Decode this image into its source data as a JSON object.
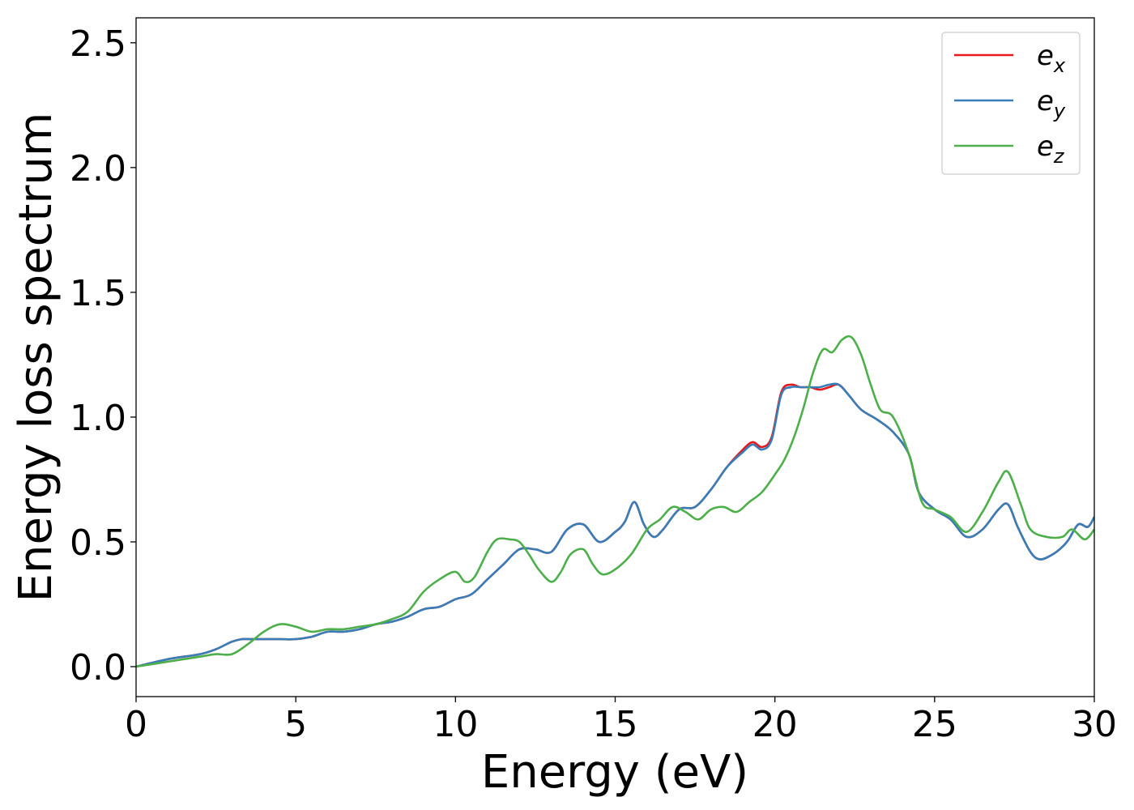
{
  "chart_data": {
    "type": "line",
    "xlabel": "Energy (eV)",
    "ylabel": "Energy loss spectrum",
    "xlim": [
      0,
      30
    ],
    "ylim": [
      -0.12,
      2.6
    ],
    "xticks": [
      0,
      5,
      10,
      15,
      20,
      25,
      30
    ],
    "xtick_labels": [
      "0",
      "5",
      "10",
      "15",
      "20",
      "25",
      "30"
    ],
    "yticks": [
      0.0,
      0.5,
      1.0,
      1.5,
      2.0,
      2.5
    ],
    "ytick_labels": [
      "0.0",
      "0.5",
      "1.0",
      "1.5",
      "2.0",
      "2.5"
    ],
    "grid": false,
    "legend_position": "top-right",
    "series": [
      {
        "name": "e_x",
        "label_main": "e",
        "label_sub": "x",
        "color": "#e41a1c",
        "x": [
          0,
          1,
          2,
          2.5,
          3,
          3.3,
          3.6,
          4,
          4.5,
          5,
          5.5,
          6,
          6.5,
          7,
          7.5,
          8,
          8.5,
          9,
          9.5,
          10,
          10.5,
          11,
          11.5,
          12,
          12.5,
          13,
          13.5,
          14,
          14.5,
          15,
          15.3,
          15.6,
          15.9,
          16.2,
          16.5,
          17,
          17.5,
          18,
          18.5,
          19,
          19.3,
          19.6,
          19.9,
          20.2,
          20.5,
          20.8,
          21.1,
          21.4,
          21.7,
          22,
          22.3,
          22.7,
          23.2,
          23.7,
          24.2,
          24.5,
          25,
          25.5,
          26,
          26.5,
          27,
          27.3,
          27.6,
          28,
          28.3,
          28.7,
          29,
          29.2,
          29.5,
          29.8,
          30
        ],
        "values": [
          0.0,
          0.03,
          0.05,
          0.07,
          0.1,
          0.11,
          0.11,
          0.11,
          0.11,
          0.11,
          0.12,
          0.14,
          0.14,
          0.15,
          0.17,
          0.18,
          0.2,
          0.23,
          0.24,
          0.27,
          0.29,
          0.35,
          0.41,
          0.47,
          0.47,
          0.46,
          0.55,
          0.57,
          0.5,
          0.54,
          0.58,
          0.66,
          0.57,
          0.52,
          0.55,
          0.63,
          0.64,
          0.71,
          0.8,
          0.87,
          0.9,
          0.88,
          0.92,
          1.1,
          1.13,
          1.12,
          1.12,
          1.11,
          1.12,
          1.13,
          1.09,
          1.03,
          0.99,
          0.94,
          0.85,
          0.7,
          0.63,
          0.59,
          0.52,
          0.55,
          0.63,
          0.65,
          0.56,
          0.46,
          0.43,
          0.45,
          0.48,
          0.51,
          0.57,
          0.56,
          0.6
        ]
      },
      {
        "name": "e_y",
        "label_main": "e",
        "label_sub": "y",
        "color": "#377eb8",
        "x": [
          0,
          1,
          2,
          2.5,
          3,
          3.3,
          3.6,
          4,
          4.5,
          5,
          5.5,
          6,
          6.5,
          7,
          7.5,
          8,
          8.5,
          9,
          9.5,
          10,
          10.5,
          11,
          11.5,
          12,
          12.5,
          13,
          13.5,
          14,
          14.5,
          15,
          15.3,
          15.6,
          15.9,
          16.2,
          16.5,
          17,
          17.5,
          18,
          18.5,
          19,
          19.3,
          19.6,
          19.9,
          20.2,
          20.5,
          20.8,
          21.1,
          21.4,
          21.7,
          22,
          22.3,
          22.7,
          23.2,
          23.7,
          24.2,
          24.5,
          25,
          25.5,
          26,
          26.5,
          27,
          27.3,
          27.6,
          28,
          28.3,
          28.7,
          29,
          29.2,
          29.5,
          29.8,
          30
        ],
        "values": [
          0.0,
          0.03,
          0.05,
          0.07,
          0.1,
          0.11,
          0.11,
          0.11,
          0.11,
          0.11,
          0.12,
          0.14,
          0.14,
          0.15,
          0.17,
          0.18,
          0.2,
          0.23,
          0.24,
          0.27,
          0.29,
          0.35,
          0.41,
          0.47,
          0.47,
          0.46,
          0.55,
          0.57,
          0.5,
          0.54,
          0.58,
          0.66,
          0.57,
          0.52,
          0.55,
          0.63,
          0.64,
          0.71,
          0.8,
          0.86,
          0.89,
          0.87,
          0.91,
          1.09,
          1.12,
          1.12,
          1.12,
          1.12,
          1.13,
          1.13,
          1.09,
          1.03,
          0.99,
          0.94,
          0.85,
          0.7,
          0.63,
          0.59,
          0.52,
          0.55,
          0.63,
          0.65,
          0.56,
          0.46,
          0.43,
          0.45,
          0.48,
          0.51,
          0.57,
          0.56,
          0.6
        ]
      },
      {
        "name": "e_z",
        "label_main": "e",
        "label_sub": "z",
        "color": "#4daf4a",
        "x": [
          0,
          1,
          2,
          2.5,
          3,
          3.5,
          4,
          4.5,
          5,
          5.5,
          6,
          6.5,
          7,
          7.5,
          8,
          8.5,
          9,
          9.5,
          10,
          10.3,
          10.6,
          11,
          11.3,
          11.7,
          12,
          12.3,
          12.6,
          13,
          13.3,
          13.6,
          14,
          14.3,
          14.6,
          15,
          15.5,
          16,
          16.4,
          16.8,
          17.2,
          17.6,
          18,
          18.4,
          18.8,
          19.2,
          19.6,
          20,
          20.3,
          20.6,
          20.9,
          21.2,
          21.5,
          21.8,
          22.1,
          22.4,
          22.7,
          23,
          23.3,
          23.7,
          24.2,
          24.6,
          25,
          25.5,
          26,
          26.5,
          27,
          27.3,
          27.7,
          28,
          28.5,
          29,
          29.3,
          29.7,
          30
        ],
        "values": [
          0.0,
          0.02,
          0.04,
          0.05,
          0.05,
          0.09,
          0.14,
          0.17,
          0.16,
          0.14,
          0.15,
          0.15,
          0.16,
          0.17,
          0.19,
          0.22,
          0.3,
          0.35,
          0.38,
          0.34,
          0.36,
          0.46,
          0.51,
          0.51,
          0.5,
          0.45,
          0.39,
          0.34,
          0.38,
          0.45,
          0.47,
          0.41,
          0.37,
          0.39,
          0.45,
          0.55,
          0.59,
          0.64,
          0.62,
          0.59,
          0.63,
          0.64,
          0.62,
          0.66,
          0.7,
          0.77,
          0.83,
          0.92,
          1.04,
          1.18,
          1.27,
          1.26,
          1.31,
          1.32,
          1.25,
          1.13,
          1.03,
          1.0,
          0.85,
          0.66,
          0.63,
          0.6,
          0.54,
          0.62,
          0.74,
          0.78,
          0.65,
          0.55,
          0.52,
          0.52,
          0.55,
          0.51,
          0.55
        ]
      }
    ]
  }
}
